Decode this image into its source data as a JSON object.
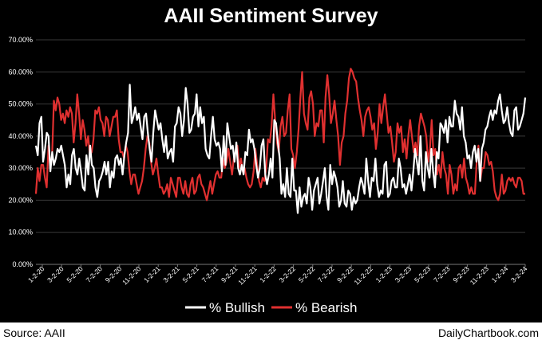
{
  "title": "AAII Sentiment Survey",
  "footer": {
    "source": "Source: AAII",
    "site": "DailyChartbook.com"
  },
  "colors": {
    "bullish": "#ffffff",
    "bearish": "#e03030",
    "grid": "#3a3a3a",
    "background": "#000000"
  },
  "chart_data": {
    "type": "line",
    "title": "AAII Sentiment Survey",
    "xlabel": "",
    "ylabel": "",
    "ylim": [
      0,
      70
    ],
    "y_ticks": [
      0,
      10,
      20,
      30,
      40,
      50,
      60,
      70
    ],
    "y_tick_labels": [
      "0.00%",
      "10.00%",
      "20.00%",
      "30.00%",
      "40.00%",
      "50.00%",
      "60.00%",
      "70.00%"
    ],
    "x_ticks": [
      "1-2-20",
      "3-2-20",
      "5-2-20",
      "7-2-20",
      "9-2-20",
      "11-2-20",
      "1-2-21",
      "3-2-21",
      "5-2-21",
      "7-2-21",
      "9-2-21",
      "11-2-21",
      "1-2-22",
      "3-2-22",
      "5-2-22",
      "7-2-22",
      "9-2-22",
      "11-2-22",
      "1-2-23",
      "3-2-23",
      "5-2-23",
      "7-2-23",
      "9-2-23",
      "11-2-23",
      "1-2-24",
      "3-2-24"
    ],
    "legend": {
      "position": "bottom-center"
    },
    "grid": true,
    "series": [
      {
        "name": "% Bullish",
        "values": [
          37,
          34,
          44,
          46,
          32,
          36,
          41,
          40,
          29,
          35,
          31,
          33,
          36,
          35,
          37,
          34,
          31,
          24,
          28,
          25,
          34,
          36,
          30,
          28,
          33,
          29,
          24,
          23,
          34,
          28,
          37,
          31,
          30,
          24,
          21,
          26,
          27,
          29,
          32,
          28,
          32,
          24,
          29,
          27,
          33,
          34,
          31,
          33,
          28,
          34,
          38,
          41,
          56,
          44,
          46,
          49,
          45,
          47,
          43,
          39,
          46,
          47,
          41,
          36,
          32,
          41,
          48,
          45,
          42,
          44,
          39,
          35,
          40,
          33,
          35,
          36,
          32,
          43,
          44,
          49,
          47,
          40,
          45,
          55,
          50,
          41,
          42,
          46,
          47,
          53,
          43,
          49,
          44,
          46,
          36,
          34,
          33,
          40,
          46,
          39,
          37,
          38,
          36,
          29,
          40,
          31,
          44,
          40,
          36,
          37,
          32,
          38,
          30,
          28,
          31,
          28,
          35,
          34,
          42,
          38,
          39,
          36,
          31,
          27,
          30,
          37,
          39,
          28,
          25,
          28,
          33,
          27,
          45,
          44,
          38,
          33,
          22,
          25,
          21,
          30,
          22,
          21,
          33,
          23,
          23,
          16,
          24,
          18,
          21,
          22,
          19,
          27,
          24,
          17,
          23,
          25,
          27,
          19,
          22,
          26,
          30,
          21,
          17,
          31,
          25,
          29,
          27,
          24,
          18,
          20,
          26,
          19,
          18,
          23,
          22,
          17,
          21,
          19,
          20,
          24,
          27,
          25,
          22,
          33,
          26,
          21,
          27,
          26,
          33,
          25,
          21,
          23,
          22,
          31,
          32,
          21,
          22,
          26,
          27,
          24,
          24,
          33,
          30,
          24,
          25,
          22,
          25,
          28,
          23,
          29,
          36,
          32,
          28,
          40,
          26,
          23,
          35,
          30,
          27,
          36,
          29,
          24,
          35,
          33,
          44,
          43,
          41,
          45,
          38,
          46,
          43,
          43,
          51,
          47,
          46,
          42,
          49,
          40,
          38,
          33,
          34,
          30,
          35,
          37,
          32,
          36,
          26,
          36,
          38,
          42,
          43,
          46,
          48,
          45,
          48,
          47,
          51,
          53,
          48,
          44,
          45,
          49,
          44,
          41,
          40,
          48,
          49,
          42,
          43,
          45,
          47,
          52
        ]
      },
      {
        "name": "% Bearish",
        "values": [
          22,
          30,
          26,
          31,
          31,
          27,
          24,
          37,
          30,
          34,
          51,
          48,
          52,
          50,
          45,
          47,
          44,
          48,
          46,
          49,
          47,
          38,
          44,
          53,
          47,
          39,
          45,
          42,
          37,
          40,
          34,
          35,
          39,
          48,
          47,
          49,
          45,
          44,
          40,
          46,
          45,
          40,
          43,
          46,
          46,
          48,
          39,
          35,
          35,
          33,
          37,
          35,
          29,
          25,
          28,
          28,
          25,
          22,
          24,
          26,
          30,
          36,
          40,
          38,
          32,
          28,
          30,
          33,
          28,
          24,
          24,
          22,
          23,
          25,
          21,
          27,
          25,
          23,
          21,
          27,
          27,
          24,
          22,
          26,
          22,
          21,
          25,
          27,
          22,
          23,
          27,
          28,
          25,
          24,
          22,
          20,
          23,
          26,
          22,
          25,
          28,
          29,
          27,
          27,
          33,
          30,
          32,
          36,
          32,
          28,
          33,
          35,
          37,
          30,
          33,
          29,
          30,
          27,
          25,
          24,
          25,
          29,
          36,
          31,
          26,
          24,
          27,
          26,
          30,
          39,
          38,
          43,
          53,
          45,
          38,
          35,
          43,
          46,
          40,
          41,
          48,
          53,
          36,
          34,
          30,
          35,
          42,
          52,
          60,
          47,
          44,
          42,
          52,
          54,
          50,
          40,
          44,
          43,
          48,
          48,
          38,
          52,
          59,
          53,
          44,
          47,
          51,
          45,
          40,
          31,
          38,
          40,
          47,
          51,
          58,
          61,
          60,
          58,
          57,
          52,
          48,
          45,
          40,
          46,
          48,
          49,
          46,
          42,
          44,
          36,
          41,
          50,
          44,
          49,
          53,
          47,
          41,
          43,
          38,
          32,
          35,
          44,
          41,
          43,
          35,
          39,
          33,
          40,
          45,
          40,
          35,
          38,
          34,
          43,
          47,
          45,
          43,
          40,
          32,
          36,
          45,
          34,
          36,
          28,
          31,
          27,
          35,
          30,
          28,
          22,
          31,
          28,
          22,
          25,
          23,
          30,
          31,
          27,
          33,
          27,
          25,
          22,
          24,
          22,
          22,
          32,
          37,
          26,
          30,
          30,
          35,
          34,
          31,
          32,
          29,
          23,
          21,
          20,
          22,
          28,
          22,
          23,
          26,
          27,
          26,
          27,
          25,
          24,
          27,
          27,
          26,
          22,
          22
        ]
      }
    ]
  }
}
